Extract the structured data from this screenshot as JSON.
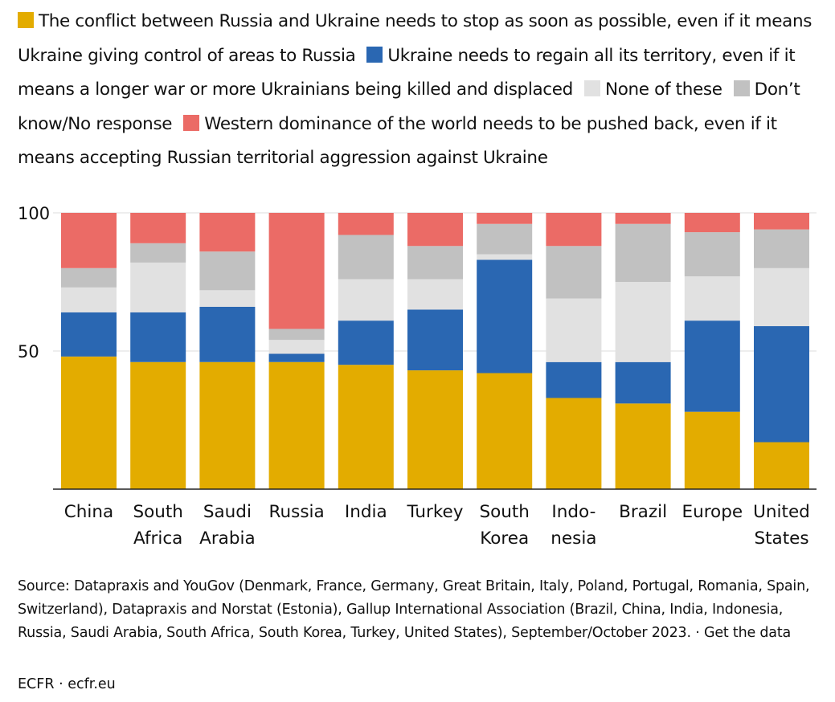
{
  "chart_data": {
    "type": "bar",
    "stacked": true,
    "categories": [
      [
        "China"
      ],
      [
        "South",
        "Africa"
      ],
      [
        "Saudi",
        "Arabia"
      ],
      [
        "Russia"
      ],
      [
        "India"
      ],
      [
        "Turkey"
      ],
      [
        "South",
        "Korea"
      ],
      [
        "Indo-",
        "nesia"
      ],
      [
        "Brazil"
      ],
      [
        "Europe"
      ],
      [
        "United",
        "States"
      ]
    ],
    "series": [
      {
        "name": "The conflict between Russia and Ukraine needs to stop as soon as possible, even if it means Ukraine giving control of areas to Russia",
        "color": "#e3ac00",
        "values": [
          48,
          46,
          46,
          46,
          45,
          43,
          42,
          33,
          31,
          28,
          17
        ]
      },
      {
        "name": "Ukraine needs to regain all its territory, even if it means a longer war or more Ukrainians being killed and displaced",
        "color": "#2a67b2",
        "values": [
          16,
          18,
          20,
          3,
          16,
          22,
          41,
          13,
          15,
          33,
          42
        ]
      },
      {
        "name": "None of these",
        "color": "#e1e1e1",
        "values": [
          9,
          18,
          6,
          5,
          15,
          11,
          2,
          23,
          29,
          16,
          21
        ]
      },
      {
        "name": "Don’t know/No response",
        "color": "#c1c1c1",
        "values": [
          7,
          7,
          14,
          4,
          16,
          12,
          11,
          19,
          21,
          16,
          14
        ]
      },
      {
        "name": "Western dominance of the world needs to be pushed back, even if it means accepting Russian territorial aggression against Ukraine",
        "color": "#eb6b66",
        "values": [
          20,
          11,
          14,
          42,
          8,
          12,
          4,
          12,
          4,
          7,
          6
        ]
      }
    ],
    "yticks": [
      50,
      100
    ],
    "ylim": [
      0,
      100
    ],
    "grid": true,
    "legend_position": "top"
  },
  "legend": [
    {
      "text": "The conflict between Russia and Ukraine needs to stop as soon as possible, even if it means Ukraine giving control of areas to Russia",
      "color": "#e3ac00"
    },
    {
      "text": "Ukraine needs to regain all its territory, even if it means a longer war or more Ukrainians being killed and displaced",
      "color": "#2a67b2"
    },
    {
      "text": "None of these",
      "color": "#e1e1e1"
    },
    {
      "text": "Don’t know/No response",
      "color": "#c1c1c1"
    },
    {
      "text": "Western dominance of the world needs to be pushed back, even if it means accepting Russian territorial aggression against Ukraine",
      "color": "#eb6b66"
    }
  ],
  "source_text": "Source: Datapraxis and YouGov (Denmark, France, Germany, Great Britain, Italy, Poland, Portugal, Romania, Spain, Switzerland), Datapraxis and Norstat (Estonia), Gallup International Association (Brazil, China, India, Indonesia, Russia, Saudi Arabia, South Africa, South Korea, Turkey, United States), September/October 2023.",
  "separator": " · ",
  "get_data_label": "Get the data",
  "brand": "ECFR · ecfr.eu"
}
